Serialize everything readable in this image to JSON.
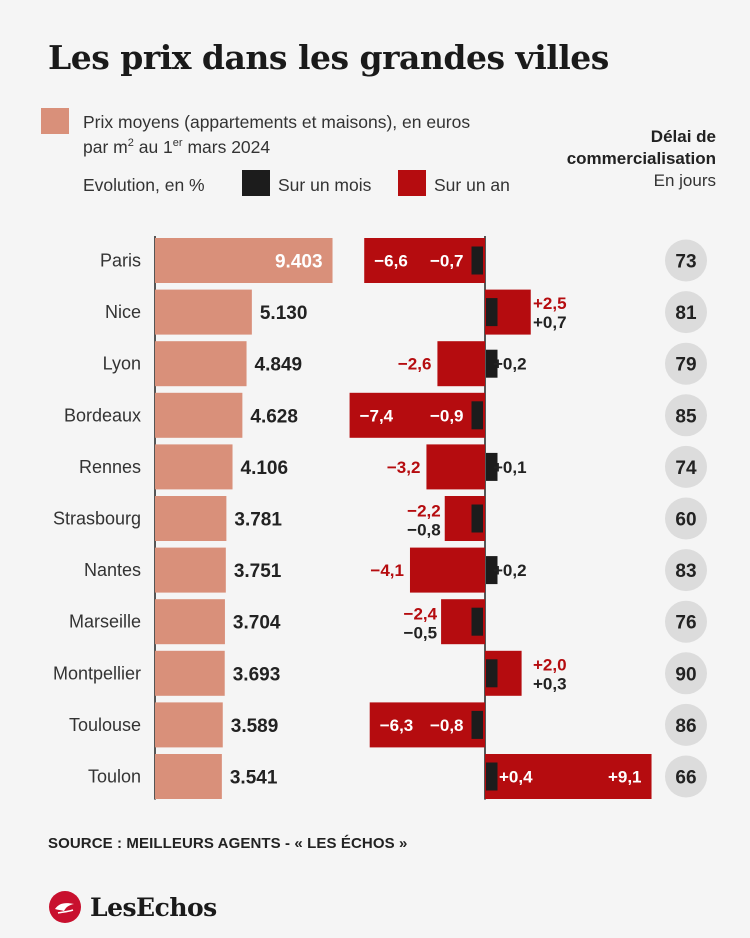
{
  "title": "Les prix dans les grandes villes",
  "legend": {
    "price_line1": "Prix moyens (appartements et maisons), en euros",
    "price_line2_a": "par m",
    "price_line2_sup1": "2",
    "price_line2_b": " au 1",
    "price_line2_sup2": "er",
    "price_line2_c": " mars 2024",
    "evolution_label": "Evolution, en %",
    "month_label": "Sur un mois",
    "year_label": "Sur un an"
  },
  "right_header": {
    "line1": "Délai de",
    "line2": "commercialisation",
    "line3": "En jours"
  },
  "colors": {
    "price": "#d9907a",
    "month": "#1c1c1c",
    "year": "#b50c0f",
    "circle": "#dcdcdc"
  },
  "chart_data": {
    "type": "bar",
    "categories": [
      "Paris",
      "Nice",
      "Lyon",
      "Bordeaux",
      "Rennes",
      "Strasbourg",
      "Nantes",
      "Marseille",
      "Montpellier",
      "Toulouse",
      "Toulon"
    ],
    "series": [
      {
        "name": "Prix moyens (appartements et maisons), en euros par m2 au 1er mars 2024",
        "values": [
          9403,
          5130,
          4849,
          4628,
          4106,
          3781,
          3751,
          3704,
          3693,
          3589,
          3541
        ],
        "labels": [
          "9.403",
          "5.130",
          "4.849",
          "4.628",
          "4.106",
          "3.781",
          "3.751",
          "3.704",
          "3.693",
          "3.589",
          "3.541"
        ]
      },
      {
        "name": "Sur un mois",
        "values": [
          -0.7,
          0.7,
          0.2,
          -0.9,
          0.1,
          -0.8,
          0.2,
          -0.5,
          0.3,
          -0.8,
          0.4
        ],
        "labels": [
          "−0,7",
          "+0,7",
          "+0,2",
          "−0,9",
          "+0,1",
          "−0,8",
          "+0,2",
          "−0,5",
          "+0,3",
          "−0,8",
          "+0,4"
        ]
      },
      {
        "name": "Sur un an",
        "values": [
          -6.6,
          2.5,
          -2.6,
          -7.4,
          -3.2,
          -2.2,
          -4.1,
          -2.4,
          2.0,
          -6.3,
          9.1
        ],
        "labels": [
          "−6,6",
          "+2,5",
          "−2,6",
          "−7,4",
          "−3,2",
          "−2,2",
          "−4,1",
          "−2,4",
          "+2,0",
          "−6,3",
          "+9,1"
        ]
      },
      {
        "name": "Délai de commercialisation",
        "values": [
          73,
          81,
          79,
          85,
          74,
          60,
          83,
          76,
          90,
          86,
          66
        ]
      }
    ]
  },
  "source": "SOURCE : MEILLEURS AGENTS - « LES ÉCHOS »",
  "logo": "LesEchos"
}
